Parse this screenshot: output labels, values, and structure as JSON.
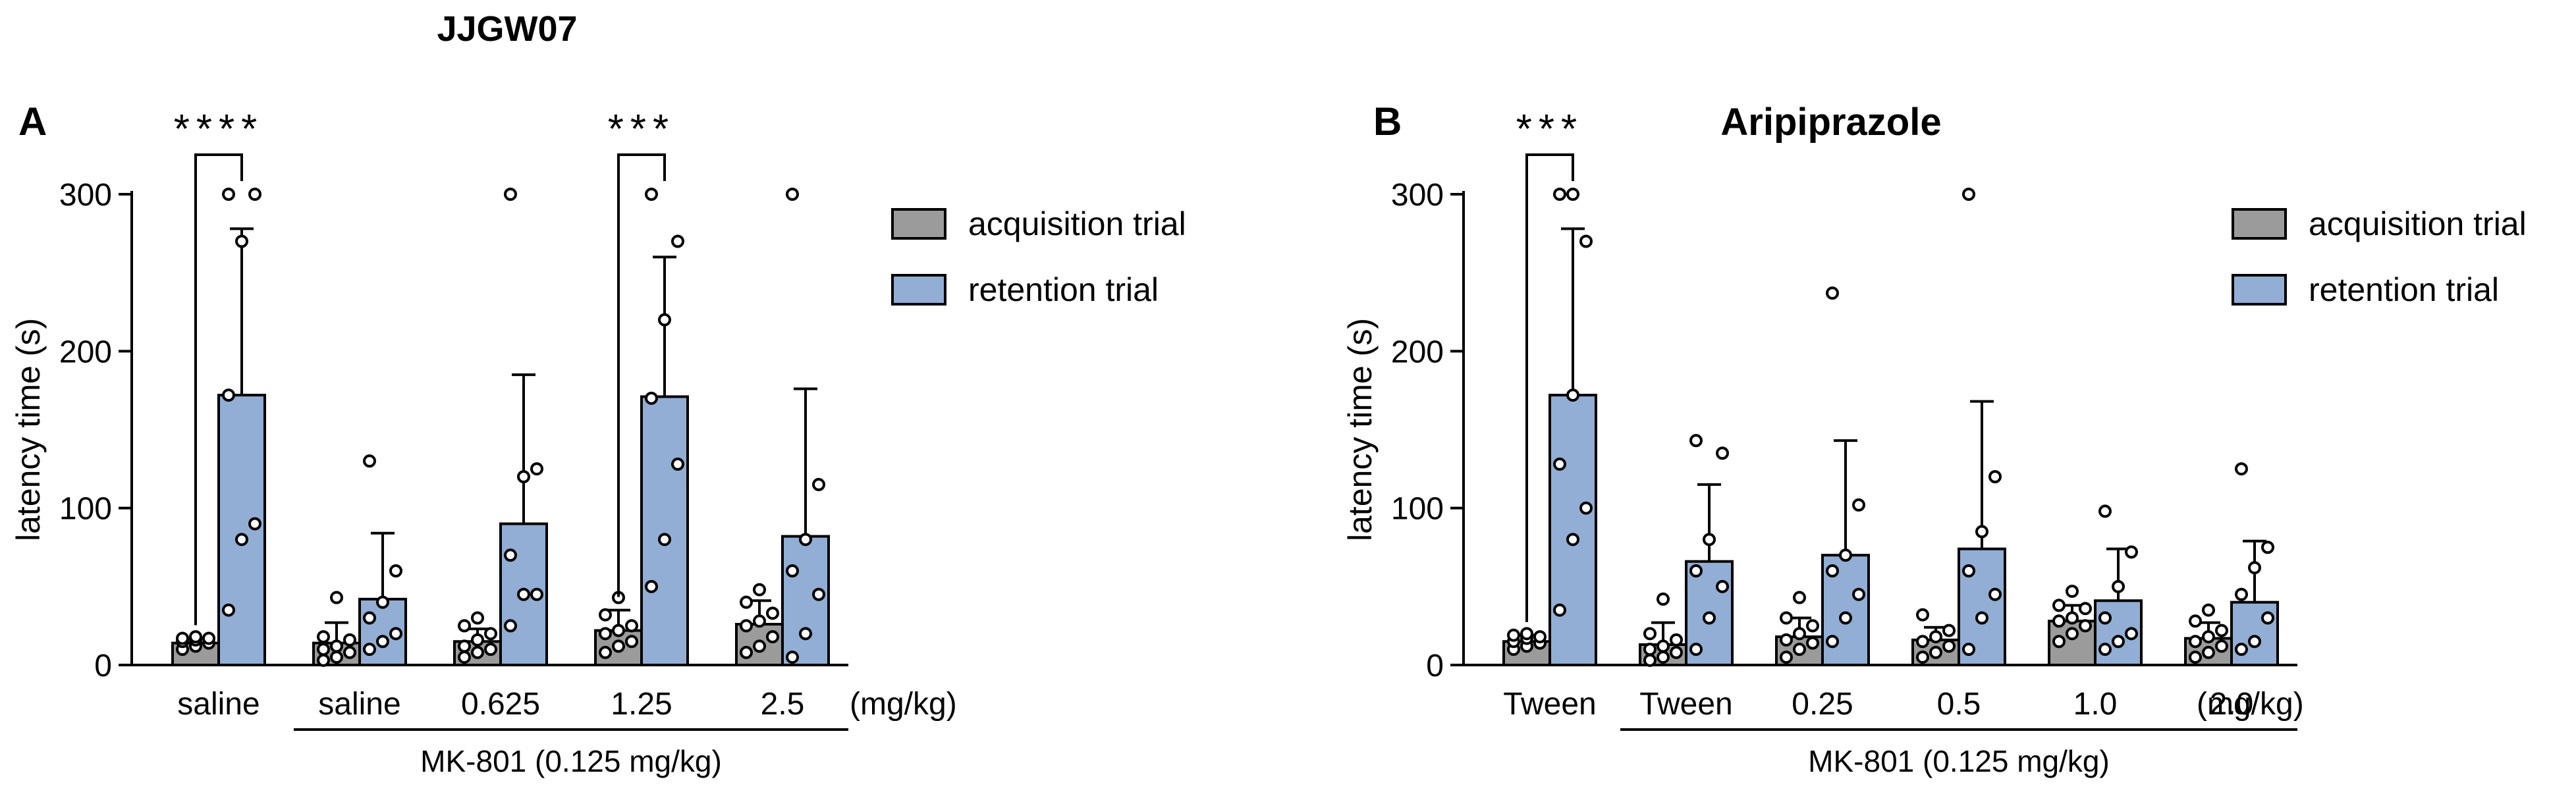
{
  "figure": {
    "header": "JJGW07",
    "legend_items": [
      "acquisition trial",
      "retention trial"
    ],
    "colors": {
      "acquisition": "#9b9b9b",
      "retention": "#92aed4",
      "point_fill": "#ffffff",
      "stroke": "#000000"
    }
  },
  "chart_data": [
    {
      "panel": "A",
      "type": "bar",
      "title": "",
      "ylabel": "latency time (s)",
      "xlabel": "",
      "unit_label": "(mg/kg)",
      "ylim": [
        0,
        300
      ],
      "yticks": [
        0,
        100,
        200,
        300
      ],
      "categories": [
        "saline",
        "saline",
        "0.625",
        "1.25",
        "2.5"
      ],
      "group_label": "MK-801 (0.125 mg/kg)",
      "group_span": [
        1,
        4
      ],
      "series": [
        {
          "name": "acquisition trial",
          "values": [
            14,
            14,
            15,
            22,
            26
          ],
          "errors": [
            3,
            13,
            8,
            13,
            15
          ],
          "points": [
            [
              10,
              12,
              14,
              15,
              16,
              17,
              17,
              18
            ],
            [
              3,
              5,
              8,
              10,
              12,
              16,
              18,
              43
            ],
            [
              5,
              8,
              10,
              12,
              16,
              20,
              25,
              30
            ],
            [
              8,
              12,
              15,
              20,
              22,
              25,
              32,
              43
            ],
            [
              8,
              12,
              18,
              25,
              28,
              33,
              40,
              48
            ]
          ]
        },
        {
          "name": "retention trial",
          "values": [
            172,
            42,
            90,
            171,
            82
          ],
          "errors": [
            106,
            42,
            95,
            89,
            94
          ],
          "points": [
            [
              35,
              80,
              90,
              172,
              270,
              300,
              300
            ],
            [
              10,
              15,
              20,
              30,
              40,
              60,
              130
            ],
            [
              25,
              45,
              45,
              70,
              120,
              125,
              300
            ],
            [
              50,
              80,
              128,
              170,
              220,
              270,
              300
            ],
            [
              5,
              20,
              45,
              60,
              80,
              115,
              300
            ]
          ]
        }
      ],
      "significance": [
        {
          "category_index": 0,
          "label": "****"
        },
        {
          "category_index": 3,
          "label": "***"
        }
      ]
    },
    {
      "panel": "B",
      "type": "bar",
      "title": "Aripiprazole",
      "ylabel": "latency time (s)",
      "xlabel": "",
      "unit_label": "(mg/kg)",
      "ylim": [
        0,
        300
      ],
      "yticks": [
        0,
        100,
        200,
        300
      ],
      "categories": [
        "Tween",
        "Tween",
        "0.25",
        "0.5",
        "1.0",
        "2.0"
      ],
      "group_label": "MK-801 (0.125 mg/kg)",
      "group_span": [
        1,
        5
      ],
      "series": [
        {
          "name": "acquisition trial",
          "values": [
            15,
            13,
            18,
            16,
            28,
            17
          ],
          "errors": [
            4,
            14,
            12,
            8,
            10,
            10
          ],
          "points": [
            [
              10,
              12,
              14,
              15,
              17,
              18,
              19,
              20
            ],
            [
              3,
              5,
              8,
              10,
              12,
              16,
              20,
              42
            ],
            [
              5,
              10,
              14,
              16,
              20,
              25,
              30,
              43
            ],
            [
              5,
              8,
              12,
              15,
              18,
              22,
              32
            ],
            [
              15,
              20,
              25,
              28,
              30,
              36,
              38,
              47
            ],
            [
              5,
              8,
              12,
              15,
              18,
              22,
              28,
              35
            ]
          ]
        },
        {
          "name": "retention trial",
          "values": [
            172,
            66,
            70,
            74,
            41,
            40
          ],
          "errors": [
            106,
            49,
            73,
            94,
            33,
            39
          ],
          "points": [
            [
              35,
              80,
              100,
              128,
              172,
              270,
              300,
              300
            ],
            [
              10,
              30,
              50,
              60,
              80,
              135,
              143
            ],
            [
              15,
              30,
              45,
              60,
              70,
              102,
              237
            ],
            [
              10,
              30,
              45,
              60,
              85,
              120,
              300
            ],
            [
              10,
              15,
              20,
              30,
              50,
              72,
              98
            ],
            [
              10,
              15,
              30,
              45,
              62,
              75,
              125
            ]
          ]
        }
      ],
      "significance": [
        {
          "category_index": 0,
          "label": "***"
        }
      ]
    }
  ]
}
